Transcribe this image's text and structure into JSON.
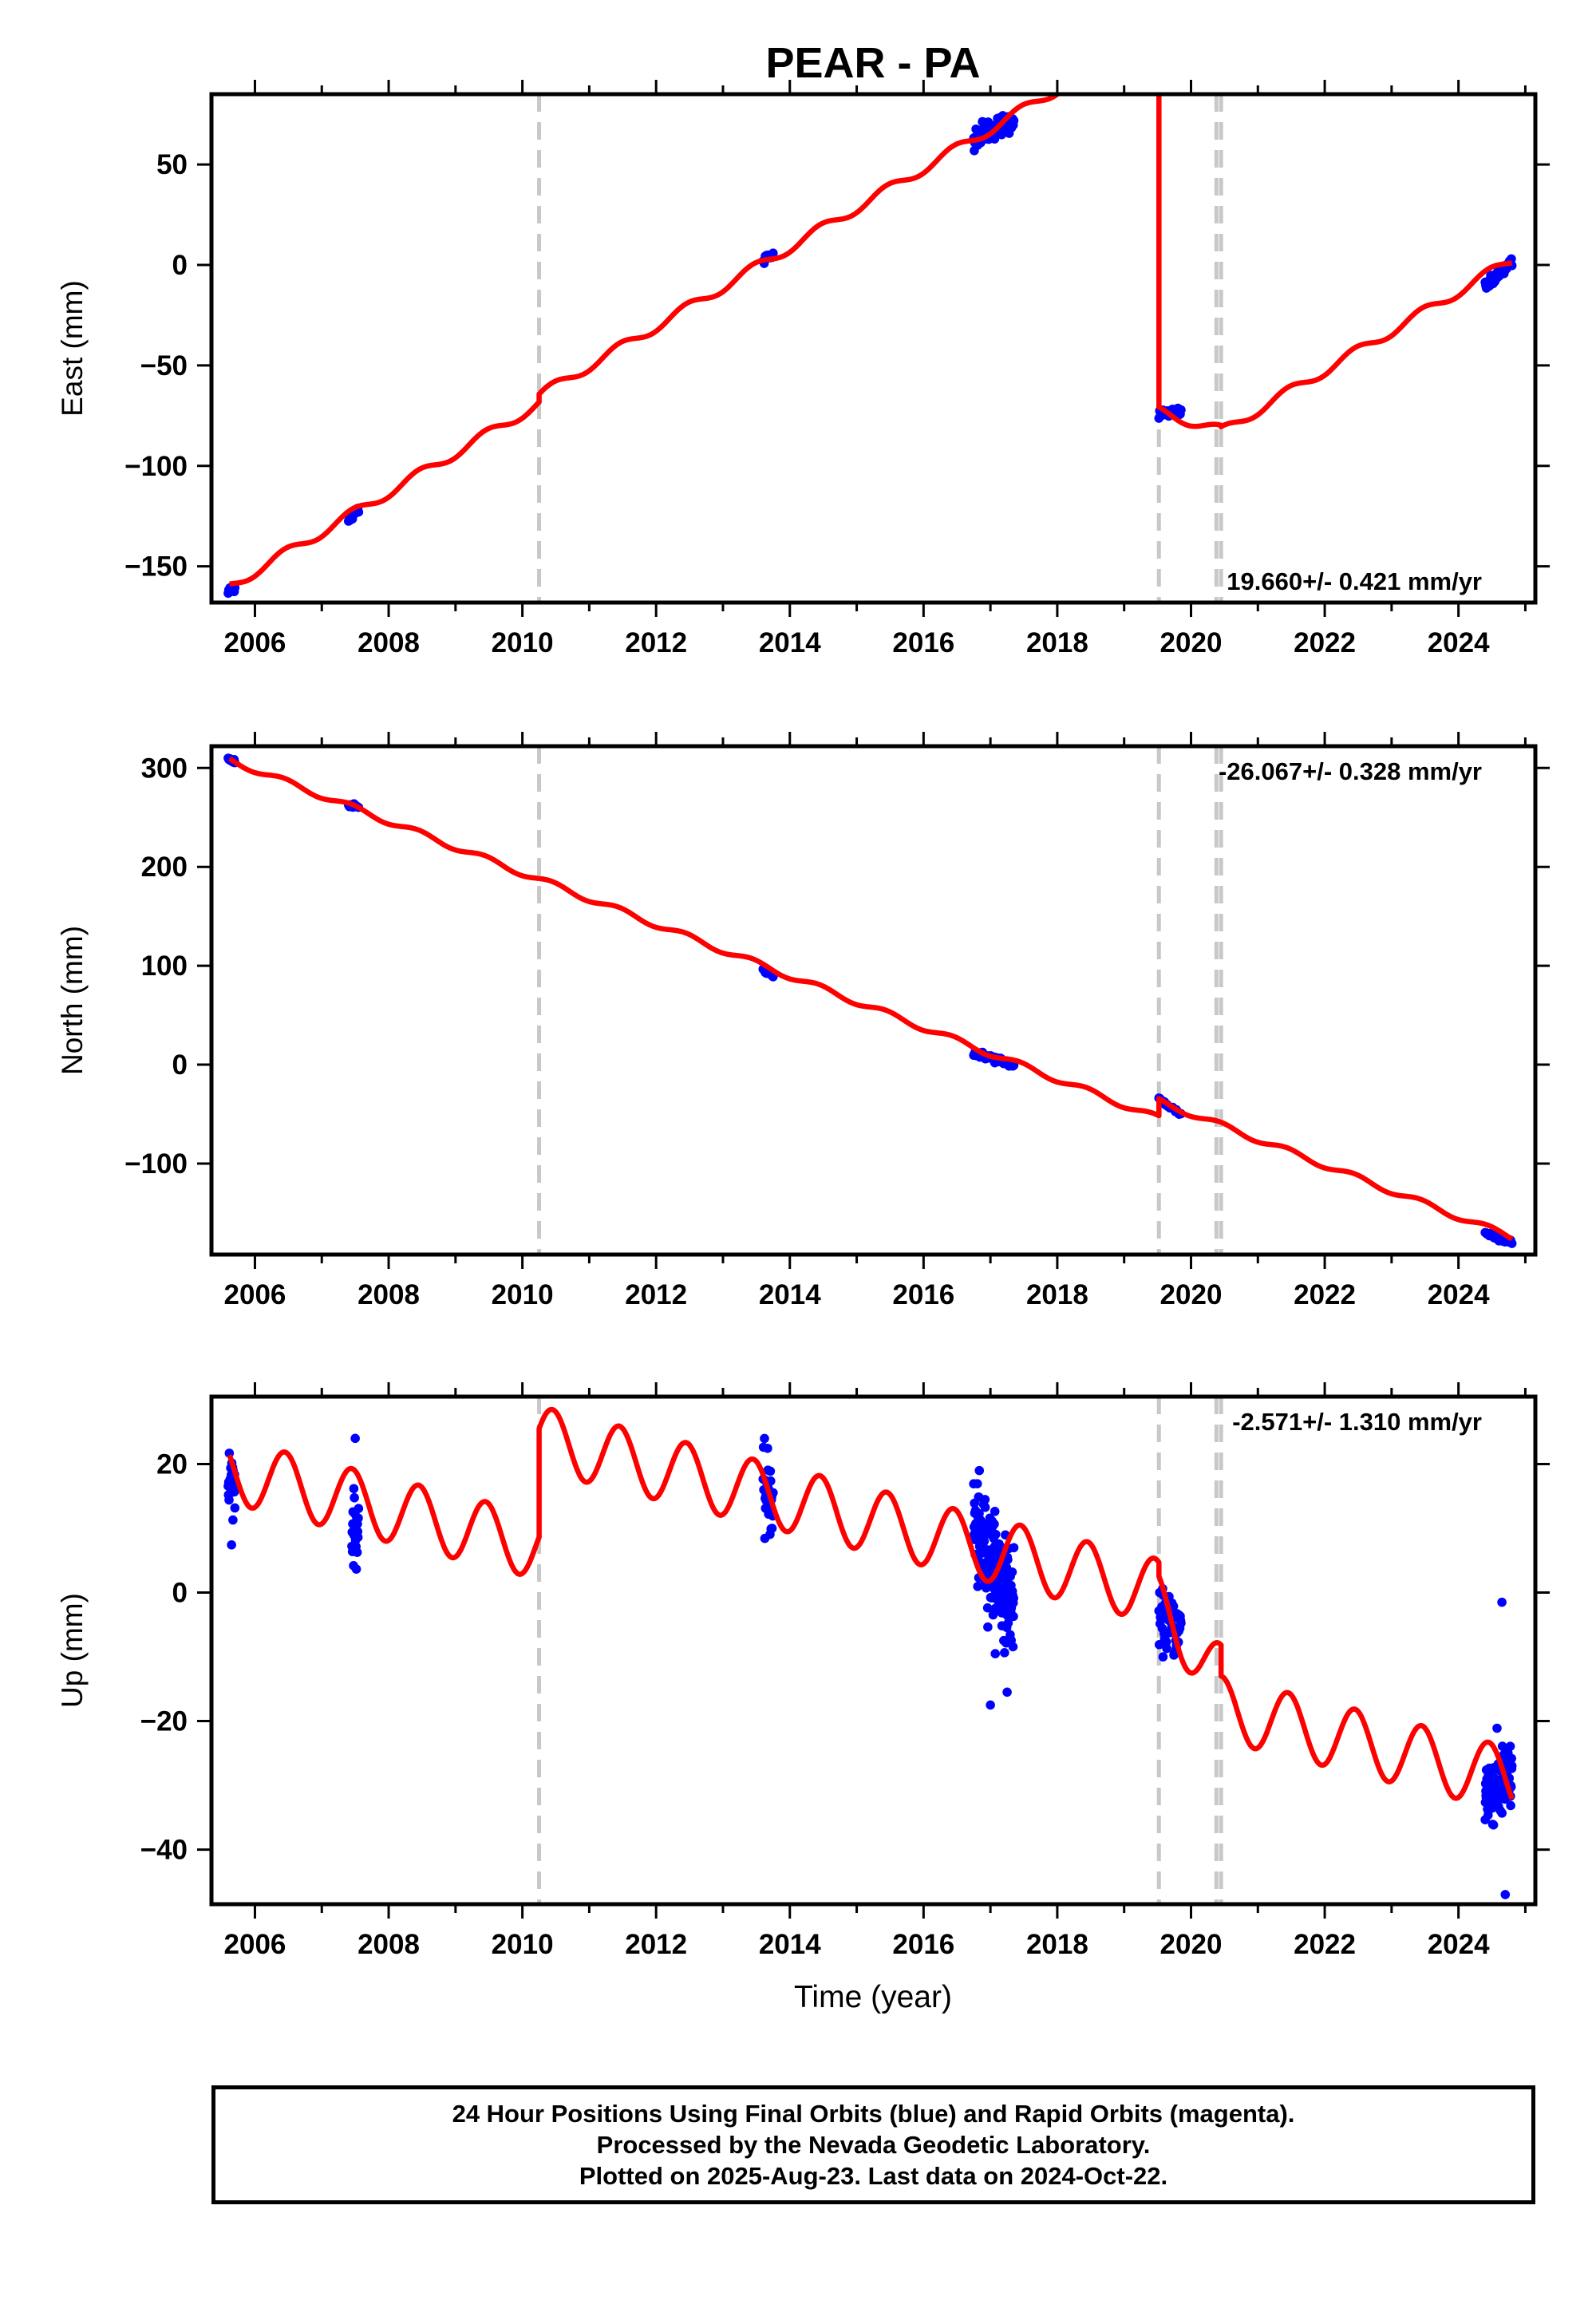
{
  "title": "PEAR - PA",
  "xlabel": "Time (year)",
  "footer": {
    "line1": "24 Hour Positions Using Final Orbits (blue) and Rapid Orbits (magenta).",
    "line2": "Processed by the Nevada Geodetic Laboratory.",
    "line3": "Plotted on 2025-Aug-23. Last data on 2024-Oct-22."
  },
  "colors": {
    "data": "#0000ff",
    "model": "#ff0000",
    "event": "#c8c8c8",
    "axis": "#000000"
  },
  "chart_data": [
    {
      "type": "scatter",
      "component": "east",
      "ylabel": "East (mm)",
      "xlim": [
        2005.35,
        2025.15
      ],
      "ylim": [
        -168,
        85
      ],
      "xticks": [
        2006,
        2008,
        2010,
        2012,
        2014,
        2016,
        2018,
        2020,
        2022,
        2024
      ],
      "yticks": [
        50,
        0,
        -50,
        -100,
        -150
      ],
      "rate_text": "19.660+/- 0.421 mm/yr",
      "rate_position": "bottom-right",
      "model": {
        "rate_mm_per_yr": 19.66,
        "annual_amp_mm": 2.5,
        "segments": [
          {
            "start": 2005.62,
            "end": 2010.25,
            "offset_mm": -160,
            "t_ref": 2005.62
          },
          {
            "start": 2010.25,
            "end": 2019.52,
            "offset_mm": -65,
            "t_ref": 2010.25
          },
          {
            "start": 2019.52,
            "end": 2020.45,
            "offset_mm": -73,
            "t_ref": 2019.52,
            "rate_mm_per_yr": -10
          },
          {
            "start": 2020.45,
            "end": 2024.8,
            "offset_mm": -83,
            "t_ref": 2020.45
          }
        ]
      },
      "clusters": [
        {
          "t0": 2005.6,
          "t1": 2005.7,
          "n": 12,
          "y0": -163,
          "y1": -160,
          "scatter": 2
        },
        {
          "t0": 2007.4,
          "t1": 2007.55,
          "n": 14,
          "y0": -126,
          "y1": -122,
          "scatter": 2.5
        },
        {
          "t0": 2013.6,
          "t1": 2013.75,
          "n": 10,
          "y0": 2,
          "y1": 5,
          "scatter": 2.5
        },
        {
          "t0": 2016.75,
          "t1": 2017.35,
          "n": 70,
          "y0": 64,
          "y1": 72,
          "scatter": 5
        },
        {
          "t0": 2019.52,
          "t1": 2019.85,
          "n": 30,
          "y0": -74,
          "y1": -73,
          "scatter": 2
        },
        {
          "t0": 2024.4,
          "t1": 2024.8,
          "n": 45,
          "y0": -11,
          "y1": 1,
          "scatter": 2.5
        }
      ]
    },
    {
      "type": "scatter",
      "component": "north",
      "ylabel": "North (mm)",
      "xlim": [
        2005.35,
        2025.15
      ],
      "ylim": [
        -192,
        322
      ],
      "xticks": [
        2006,
        2008,
        2010,
        2012,
        2014,
        2016,
        2018,
        2020,
        2022,
        2024
      ],
      "yticks": [
        300,
        200,
        100,
        0,
        -100
      ],
      "rate_text": "-26.067+/- 0.328 mm/yr",
      "rate_position": "top-right",
      "model": {
        "rate_mm_per_yr": -26.067,
        "annual_amp_mm": 3,
        "segments": [
          {
            "start": 2005.62,
            "end": 2019.52,
            "offset_mm": 308,
            "t_ref": 2005.62
          },
          {
            "start": 2019.52,
            "end": 2024.8,
            "offset_mm": -37,
            "t_ref": 2019.52
          }
        ]
      },
      "clusters": [
        {
          "t0": 2005.6,
          "t1": 2005.7,
          "n": 10,
          "y0": 309,
          "y1": 306,
          "scatter": 2
        },
        {
          "t0": 2007.4,
          "t1": 2007.55,
          "n": 12,
          "y0": 263,
          "y1": 260,
          "scatter": 2
        },
        {
          "t0": 2013.6,
          "t1": 2013.75,
          "n": 10,
          "y0": 95,
          "y1": 91,
          "scatter": 2
        },
        {
          "t0": 2016.75,
          "t1": 2017.35,
          "n": 60,
          "y0": 12,
          "y1": 0,
          "scatter": 3
        },
        {
          "t0": 2019.52,
          "t1": 2019.85,
          "n": 25,
          "y0": -35,
          "y1": -50,
          "scatter": 2
        },
        {
          "t0": 2024.4,
          "t1": 2024.8,
          "n": 40,
          "y0": -170,
          "y1": -180,
          "scatter": 2.5
        }
      ]
    },
    {
      "type": "scatter",
      "component": "up",
      "ylabel": "Up (mm)",
      "xlim": [
        2005.35,
        2025.15
      ],
      "ylim": [
        -48.5,
        30.5
      ],
      "xticks": [
        2006,
        2008,
        2010,
        2012,
        2014,
        2016,
        2018,
        2020,
        2022,
        2024
      ],
      "yticks": [
        20,
        0,
        -20,
        -40
      ],
      "rate_text": "-2.571+/- 1.310 mm/yr",
      "rate_position": "top-right",
      "model": {
        "rate_mm_per_yr": -2.571,
        "annual_amp_mm": 5,
        "segments": [
          {
            "start": 2005.62,
            "end": 2010.25,
            "offset_mm": 19,
            "t_ref": 2005.62
          },
          {
            "start": 2010.25,
            "end": 2019.52,
            "offset_mm": 24,
            "t_ref": 2010.25
          },
          {
            "start": 2019.52,
            "end": 2020.45,
            "offset_mm": -2,
            "t_ref": 2019.52,
            "rate_mm_per_yr": -12
          },
          {
            "start": 2020.45,
            "end": 2024.8,
            "offset_mm": -18,
            "t_ref": 2020.45
          }
        ]
      },
      "clusters": [
        {
          "t0": 2005.6,
          "t1": 2005.7,
          "n": 25,
          "y0": 17,
          "y1": 17,
          "scatter": 5
        },
        {
          "t0": 2007.45,
          "t1": 2007.55,
          "n": 25,
          "y0": 10,
          "y1": 10,
          "scatter": 5
        },
        {
          "t0": 2013.6,
          "t1": 2013.75,
          "n": 30,
          "y0": 15,
          "y1": 15,
          "scatter": 6
        },
        {
          "t0": 2016.75,
          "t1": 2017.35,
          "n": 200,
          "y0": 10,
          "y1": -2,
          "scatter": 7
        },
        {
          "t0": 2019.52,
          "t1": 2019.85,
          "n": 60,
          "y0": -4,
          "y1": -6,
          "scatter": 4
        },
        {
          "t0": 2024.4,
          "t1": 2024.8,
          "n": 130,
          "y0": -31,
          "y1": -29,
          "scatter": 5
        }
      ],
      "outliers": [
        {
          "x": 2024.65,
          "y": -1.5
        },
        {
          "x": 2024.7,
          "y": -47
        },
        {
          "x": 2017.0,
          "y": -17.5
        },
        {
          "x": 2017.25,
          "y": -15.5
        },
        {
          "x": 2007.5,
          "y": 24
        }
      ]
    }
  ],
  "events": [
    {
      "x": 2010.25,
      "style": "dashed"
    },
    {
      "x": 2019.52,
      "style": "dashed"
    },
    {
      "x": 2020.38,
      "style": "dashed"
    },
    {
      "x": 2020.45,
      "style": "dashed"
    }
  ]
}
